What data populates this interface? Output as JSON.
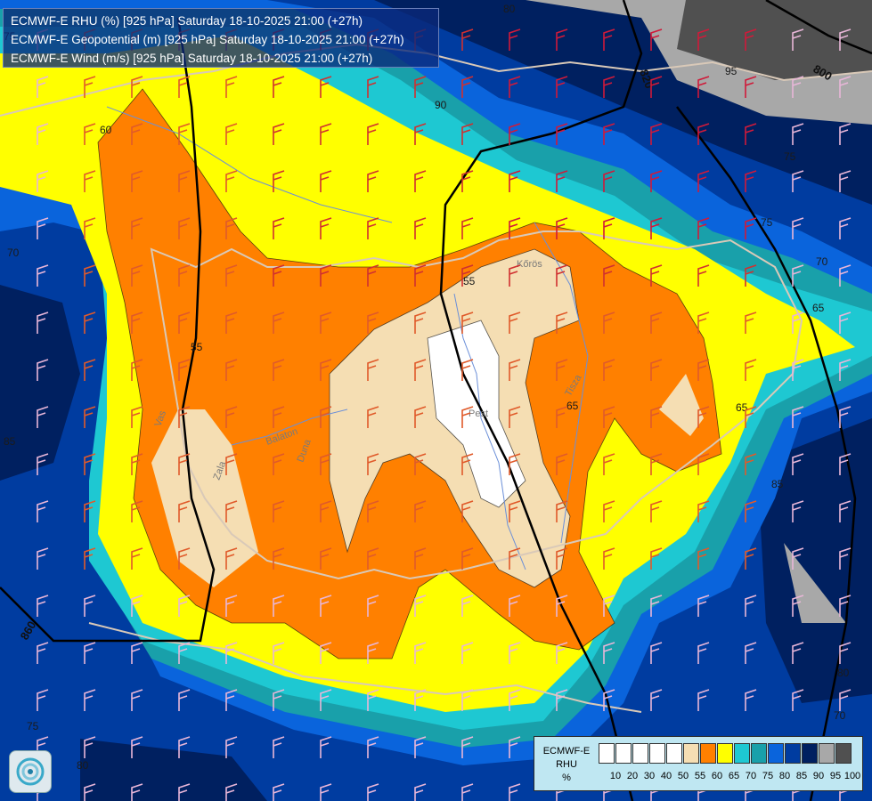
{
  "title": {
    "lines": [
      "ECMWF-E RHU (%) [925 hPa] Saturday 18-10-2025 21:00 (+27h)",
      "ECMWF-E Geopotential (m) [925 hPa] Saturday 18-10-2025 21:00 (+27h)",
      "ECMWF-E Wind (m/s) [925 hPa] Saturday 18-10-2025 21:00 (+27h)"
    ]
  },
  "legend": {
    "label_lines": [
      "ECMWF-E",
      "RHU",
      "%"
    ],
    "colors": [
      "#ffffff",
      "#ffffff",
      "#ffffff",
      "#ffffff",
      "#ffffff",
      "#f5deb3",
      "#ff8000",
      "#ffff00",
      "#1ec8d2",
      "#19a0aa",
      "#0a64dc",
      "#003ca0",
      "#002060",
      "#a8a8a8",
      "#505050"
    ],
    "ticks": [
      "10",
      "20",
      "30",
      "40",
      "50",
      "55",
      "60",
      "65",
      "70",
      "75",
      "80",
      "85",
      "90",
      "95",
      "100"
    ]
  },
  "colors": {
    "rh_50_55": "#f5deb3",
    "rh_55_60": "#ff8000",
    "rh_60_65": "#ffff00",
    "rh_65_70": "#1ec8d2",
    "rh_70_75": "#19a0aa",
    "rh_75_80": "#0a64dc",
    "rh_80_85": "#003ca0",
    "rh_85_90": "#002060",
    "rh_90_95": "#a8a8a8",
    "rh_95_100": "#505050",
    "rh_below_50": "#ffffff",
    "border": "#d9c9b8",
    "river": "#6b8fd8",
    "isoheight": "#000000"
  },
  "contour_labels": [
    "60",
    "55",
    "55",
    "65",
    "65",
    "70",
    "70",
    "70",
    "75",
    "75",
    "75",
    "75",
    "80",
    "80",
    "80",
    "85",
    "85",
    "90",
    "95",
    "65"
  ],
  "geopotential_labels": [
    "820",
    "800",
    "860"
  ],
  "place_labels": [
    "Pest",
    "Zala",
    "Vas",
    "Balaton",
    "Duna",
    "Tisza",
    "Kőrös"
  ],
  "logo": "ecmwf-swirl-logo"
}
